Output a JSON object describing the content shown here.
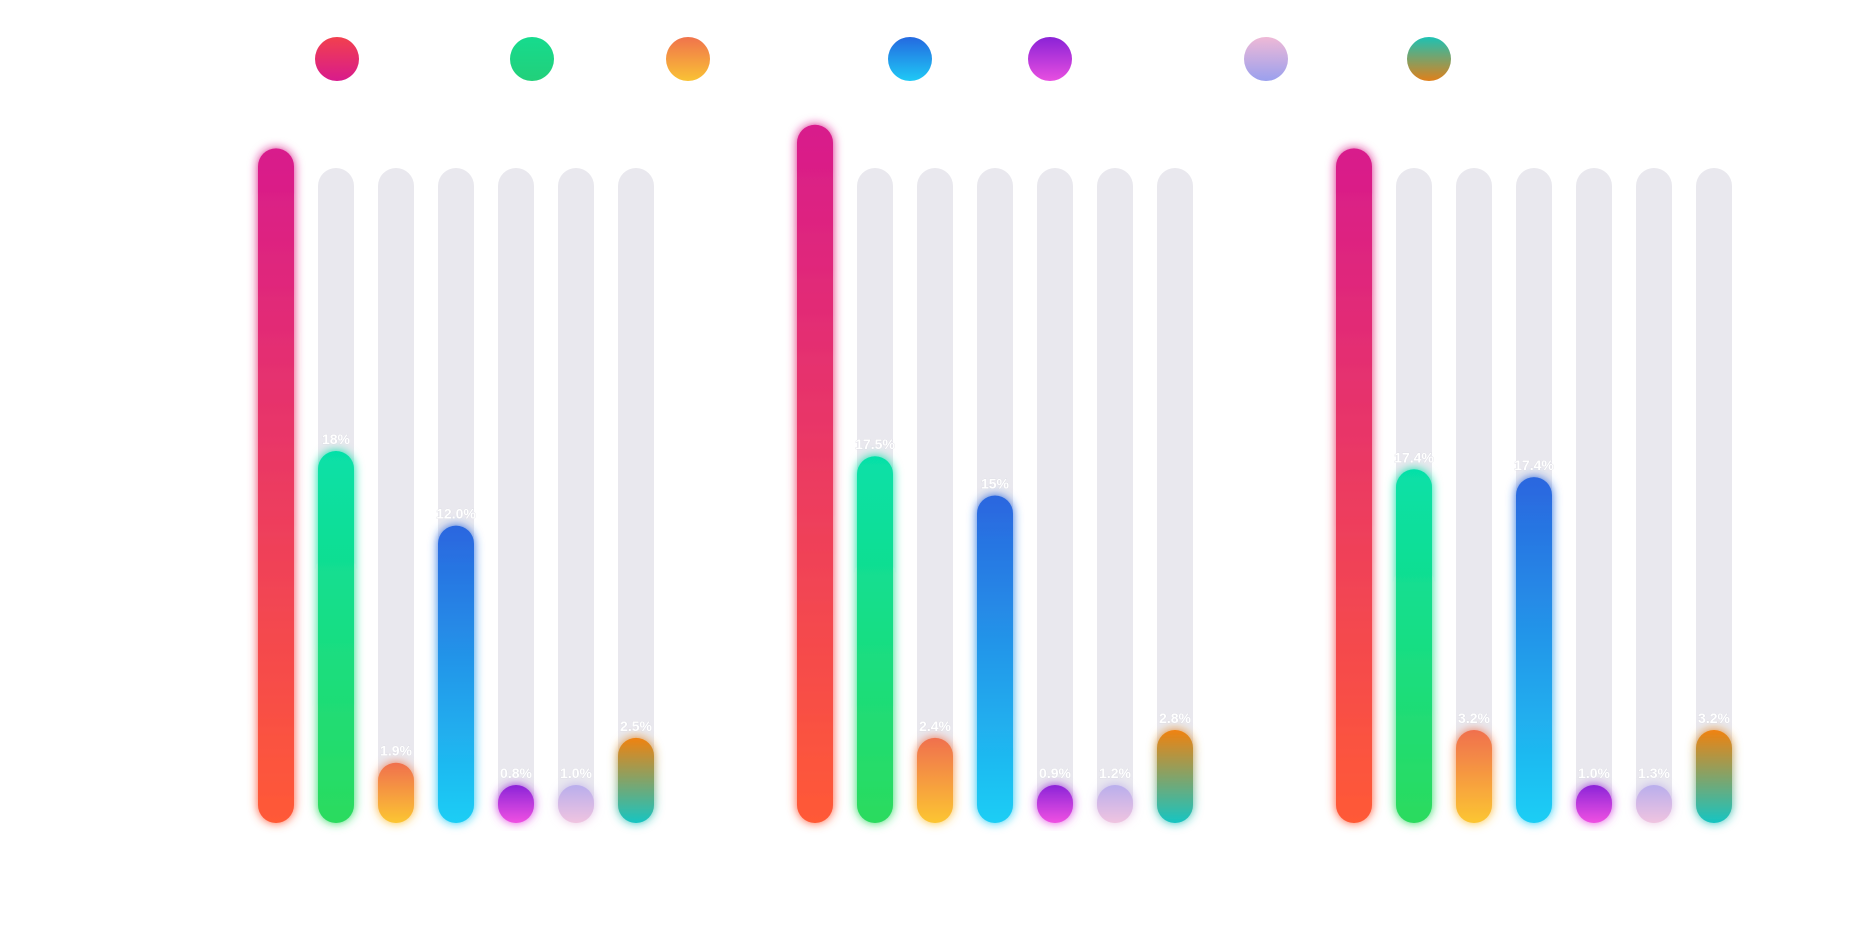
{
  "chart_data": {
    "type": "bar",
    "title": "",
    "legend": {
      "placement": "top",
      "entries": [
        {
          "color_top": "#F2404E",
          "color_bottom": "#D81B8C"
        },
        {
          "color_top": "#16DB8E",
          "color_bottom": "#22D07A"
        },
        {
          "color_top": "#F0734C",
          "color_bottom": "#F9C235"
        },
        {
          "color_top": "#2469E0",
          "color_bottom": "#1FC9F5"
        },
        {
          "color_top": "#8A22D6",
          "color_bottom": "#E84FE0"
        },
        {
          "color_top": "#EFB9D6",
          "color_bottom": "#9AA0EE"
        },
        {
          "color_top": "#1CC2B4",
          "color_bottom": "#E0801A"
        }
      ]
    },
    "series_gradients": [
      {
        "top": "#D81B8C",
        "bottom": "#FF5A36"
      },
      {
        "top": "#06E0A8",
        "bottom": "#2BDB5E"
      },
      {
        "top": "#F0704E",
        "bottom": "#FCC632"
      },
      {
        "top": "#2A66DF",
        "bottom": "#1CCEF5"
      },
      {
        "top": "#8B25D8",
        "bottom": "#F050E2"
      },
      {
        "top": "#B9AEEC",
        "bottom": "#F0C4E0"
      },
      {
        "top": "#F08210",
        "bottom": "#16C5C2"
      }
    ],
    "track_color": "#E9E8EE",
    "groups": [
      {
        "values": [
          51.5,
          28.4,
          4.6,
          22.7,
          2.9,
          2.9,
          6.5
        ],
        "labels": [
          "",
          "18%",
          "1.9%",
          "12.0%",
          "0.8%",
          "1.0%",
          "2.5%"
        ]
      },
      {
        "values": [
          53.3,
          28.0,
          6.5,
          25.0,
          2.9,
          2.9,
          7.1
        ],
        "labels": [
          "",
          "17.5%",
          "2.4%",
          "15%",
          "0.9%",
          "1.2%",
          "2.8%"
        ]
      },
      {
        "values": [
          51.5,
          27.0,
          7.1,
          26.4,
          2.9,
          2.9,
          7.1
        ],
        "labels": [
          "",
          "17.4%",
          "3.2%",
          "17.4%",
          "1.0%",
          "1.3%",
          "3.2%"
        ]
      }
    ],
    "track_max": 50,
    "grid": false
  }
}
